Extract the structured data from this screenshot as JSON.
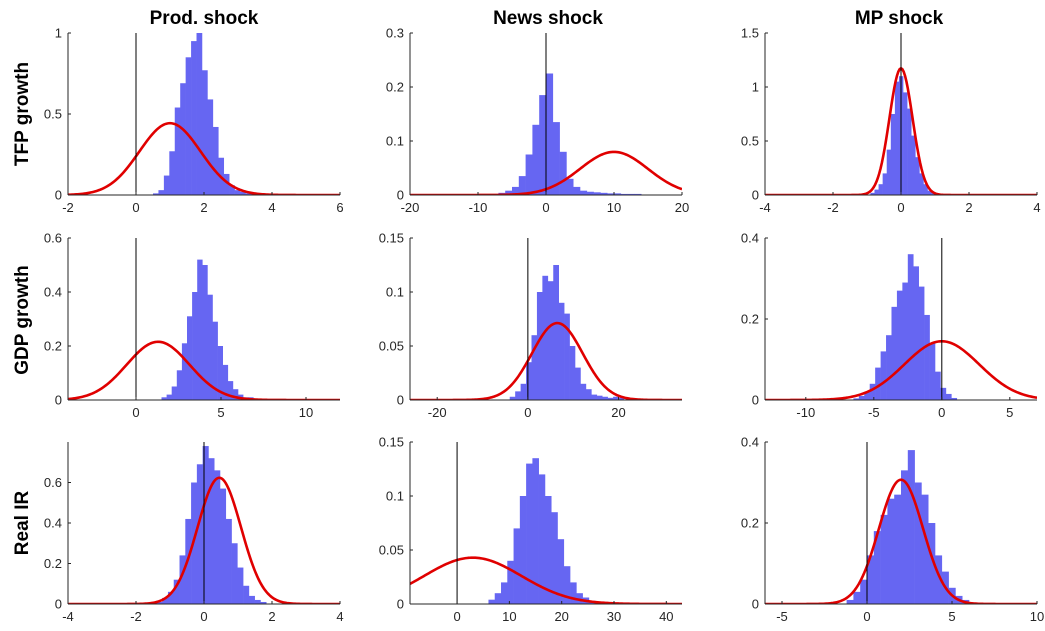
{
  "colors": {
    "histogram": "#6666f2",
    "prior_curve": "#e00000",
    "zero_line": "#000000",
    "axis": "#262626"
  },
  "col_titles": [
    "Prod. shock",
    "News shock",
    "MP shock"
  ],
  "row_labels": [
    "TFP growth",
    "GDP growth",
    "Real IR"
  ],
  "chart_data": [
    {
      "type": "histogram",
      "row": 0,
      "col": 0,
      "xlim": [
        -2,
        6
      ],
      "ylim": [
        0,
        1
      ],
      "xticks": [
        -2,
        0,
        2,
        4,
        6
      ],
      "xtick_labels": [
        "-2",
        "0",
        "2",
        "4",
        "6"
      ],
      "yticks": [
        0,
        0.5,
        1
      ],
      "ytick_labels": [
        "0",
        "0.5",
        "1"
      ],
      "hist": {
        "start": 0.5,
        "width": 0.16,
        "values": [
          0.01,
          0.03,
          0.12,
          0.27,
          0.54,
          0.69,
          0.85,
          0.95,
          1.0,
          0.77,
          0.59,
          0.42,
          0.23,
          0.13,
          0.06,
          0.03,
          0.02,
          0.01,
          0.01
        ]
      },
      "curve": {
        "mean": 1.0,
        "sd": 0.9
      },
      "vline": 0
    },
    {
      "type": "histogram",
      "row": 0,
      "col": 1,
      "xlim": [
        -20,
        20
      ],
      "ylim": [
        0,
        0.3
      ],
      "xticks": [
        -20,
        -10,
        0,
        10,
        20
      ],
      "xtick_labels": [
        "-20",
        "-10",
        "0",
        "10",
        "20"
      ],
      "yticks": [
        0,
        0.1,
        0.2,
        0.3
      ],
      "ytick_labels": [
        "0",
        "0.1",
        "0.2",
        "0.3"
      ],
      "hist": {
        "start": -7,
        "width": 1,
        "values": [
          0.004,
          0.008,
          0.015,
          0.035,
          0.075,
          0.13,
          0.185,
          0.225,
          0.135,
          0.08,
          0.03,
          0.015,
          0.008,
          0.006,
          0.005,
          0.004,
          0.003,
          0.003,
          0.002,
          0.002,
          0.002
        ]
      },
      "curve": {
        "mean": 10,
        "sd": 5
      },
      "vline": 0
    },
    {
      "type": "histogram",
      "row": 0,
      "col": 2,
      "xlim": [
        -4,
        4
      ],
      "ylim": [
        0,
        1.5
      ],
      "xticks": [
        -4,
        -2,
        0,
        2,
        4
      ],
      "xtick_labels": [
        "-4",
        "-2",
        "0",
        "2",
        "4"
      ],
      "yticks": [
        0,
        0.5,
        1,
        1.5
      ],
      "ytick_labels": [
        "0",
        "0.5",
        "1",
        "1.5"
      ],
      "hist": {
        "start": -0.9,
        "width": 0.12,
        "values": [
          0.02,
          0.05,
          0.1,
          0.2,
          0.42,
          0.75,
          1.05,
          1.1,
          0.95,
          0.8,
          0.55,
          0.35,
          0.2,
          0.1,
          0.04,
          0.02,
          0.01
        ]
      },
      "curve": {
        "mean": 0,
        "sd": 0.34
      },
      "vline": 0
    },
    {
      "type": "histogram",
      "row": 1,
      "col": 0,
      "xlim": [
        -4,
        12
      ],
      "ylim": [
        0,
        0.6
      ],
      "xticks": [
        0,
        5,
        10
      ],
      "xtick_labels": [
        "0",
        "5",
        "10"
      ],
      "yticks": [
        0,
        0.2,
        0.4,
        0.6
      ],
      "ytick_labels": [
        "0",
        "0.2",
        "0.4",
        "0.6"
      ],
      "hist": {
        "start": 1.5,
        "width": 0.3,
        "values": [
          0.01,
          0.02,
          0.05,
          0.11,
          0.21,
          0.31,
          0.4,
          0.52,
          0.5,
          0.39,
          0.29,
          0.2,
          0.13,
          0.07,
          0.04,
          0.02,
          0.01,
          0.01
        ]
      },
      "curve": {
        "mean": 1.3,
        "sd": 1.85
      },
      "vline": 0
    },
    {
      "type": "histogram",
      "row": 1,
      "col": 1,
      "xlim": [
        -26,
        34
      ],
      "ylim": [
        0,
        0.15
      ],
      "xticks": [
        -20,
        0,
        20
      ],
      "xtick_labels": [
        "-20",
        "0",
        "20"
      ],
      "yticks": [
        0,
        0.05,
        0.1,
        0.15
      ],
      "ytick_labels": [
        "0",
        "0.05",
        "0.1",
        "0.15"
      ],
      "hist": {
        "start": -4,
        "width": 1.2,
        "values": [
          0.003,
          0.008,
          0.015,
          0.035,
          0.06,
          0.1,
          0.115,
          0.11,
          0.125,
          0.09,
          0.08,
          0.05,
          0.03,
          0.015,
          0.01,
          0.005,
          0.004,
          0.003,
          0.002,
          0.003,
          0.002
        ]
      },
      "curve": {
        "mean": 6.5,
        "sd": 5.6
      },
      "vline": 0
    },
    {
      "type": "histogram",
      "row": 1,
      "col": 2,
      "xlim": [
        -13,
        7
      ],
      "ylim": [
        0,
        0.4
      ],
      "xticks": [
        -10,
        -5,
        0,
        5
      ],
      "xtick_labels": [
        "-10",
        "-5",
        "0",
        "5"
      ],
      "yticks": [
        0,
        0.2,
        0.4
      ],
      "ytick_labels": [
        "0",
        "0.2",
        "0.4"
      ],
      "hist": {
        "start": -6.5,
        "width": 0.4,
        "values": [
          0.004,
          0.01,
          0.02,
          0.04,
          0.08,
          0.12,
          0.16,
          0.23,
          0.27,
          0.29,
          0.36,
          0.33,
          0.28,
          0.21,
          0.14,
          0.07,
          0.03,
          0.015,
          0.005
        ]
      },
      "curve": {
        "mean": 0,
        "sd": 2.75
      },
      "vline": 0
    },
    {
      "type": "histogram",
      "row": 2,
      "col": 0,
      "xlim": [
        -4,
        4
      ],
      "ylim": [
        0,
        0.8
      ],
      "xticks": [
        -4,
        -2,
        0,
        2,
        4
      ],
      "xtick_labels": [
        "-4",
        "-2",
        "0",
        "2",
        "4"
      ],
      "yticks": [
        0,
        0.2,
        0.4,
        0.6
      ],
      "ytick_labels": [
        "0",
        "0.2",
        "0.4",
        "0.6"
      ],
      "hist": {
        "start": -1.4,
        "width": 0.17,
        "values": [
          0.01,
          0.03,
          0.06,
          0.12,
          0.24,
          0.42,
          0.6,
          0.69,
          0.78,
          0.72,
          0.66,
          0.57,
          0.42,
          0.3,
          0.18,
          0.09,
          0.04,
          0.02,
          0.01
        ]
      },
      "curve": {
        "mean": 0.45,
        "sd": 0.64
      },
      "vline": 0
    },
    {
      "type": "histogram",
      "row": 2,
      "col": 1,
      "xlim": [
        -9,
        43
      ],
      "ylim": [
        0,
        0.15
      ],
      "xticks": [
        0,
        10,
        20,
        30,
        40
      ],
      "xtick_labels": [
        "0",
        "10",
        "20",
        "30",
        "40"
      ],
      "yticks": [
        0,
        0.05,
        0.1,
        0.15
      ],
      "ytick_labels": [
        "0",
        "0.05",
        "0.1",
        "0.15"
      ],
      "hist": {
        "start": 6,
        "width": 1.2,
        "values": [
          0.004,
          0.01,
          0.02,
          0.04,
          0.07,
          0.1,
          0.13,
          0.135,
          0.12,
          0.1,
          0.085,
          0.06,
          0.035,
          0.02,
          0.01,
          0.006,
          0.003,
          0.002
        ]
      },
      "curve": {
        "mean": 3,
        "sd": 9.3
      },
      "vline": 0
    },
    {
      "type": "histogram",
      "row": 2,
      "col": 2,
      "xlim": [
        -6,
        10
      ],
      "ylim": [
        0,
        0.4
      ],
      "xticks": [
        -5,
        0,
        5,
        10
      ],
      "xtick_labels": [
        "-5",
        "0",
        "5",
        "10"
      ],
      "yticks": [
        0,
        0.2,
        0.4
      ],
      "ytick_labels": [
        "0",
        "0.2",
        "0.4"
      ],
      "hist": {
        "start": -1.2,
        "width": 0.4,
        "values": [
          0.01,
          0.03,
          0.06,
          0.12,
          0.18,
          0.22,
          0.26,
          0.27,
          0.33,
          0.38,
          0.3,
          0.27,
          0.2,
          0.12,
          0.08,
          0.04,
          0.02,
          0.01
        ]
      },
      "curve": {
        "mean": 2,
        "sd": 1.3
      },
      "vline": 0
    }
  ]
}
